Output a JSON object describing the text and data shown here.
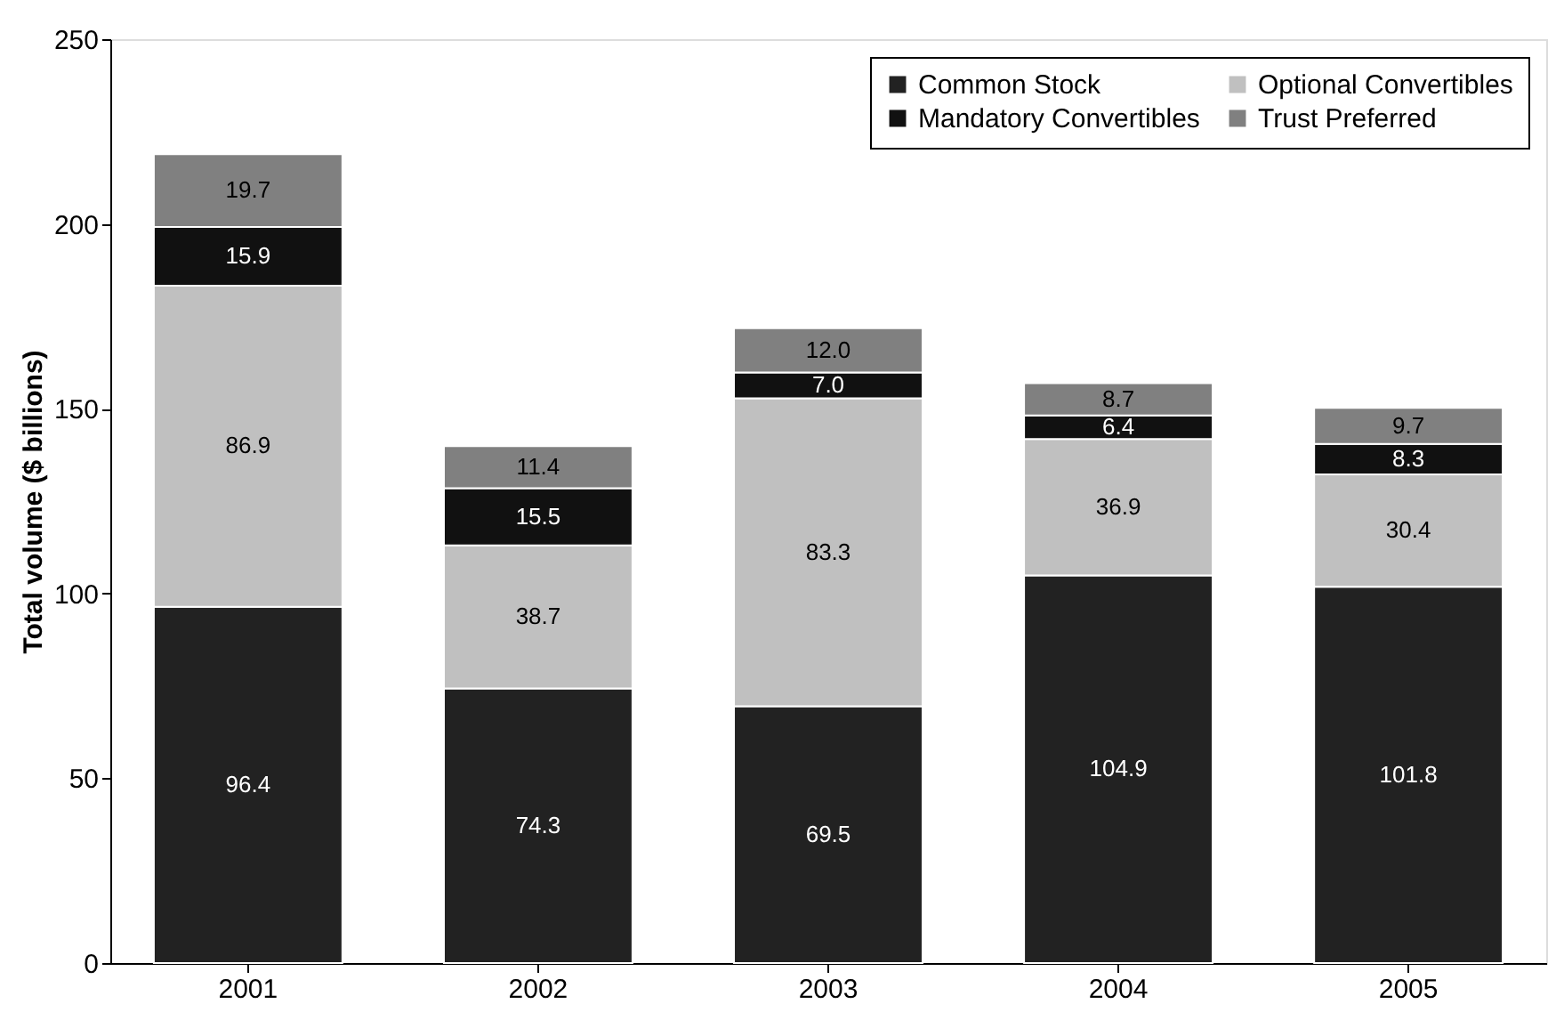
{
  "chart_data": {
    "type": "bar",
    "stacked": true,
    "ylabel": "Total volume ($ billions)",
    "categories": [
      "2001",
      "2002",
      "2003",
      "2004",
      "2005"
    ],
    "series": [
      {
        "name": "Common Stock",
        "color": "#222222",
        "values": [
          96.4,
          74.3,
          69.5,
          104.9,
          101.8
        ],
        "value_labels": [
          "96.4",
          "74.3",
          "69.5",
          "104.9",
          "101.8"
        ]
      },
      {
        "name": "Optional Convertibles",
        "color": "#c0c0c0",
        "values": [
          86.9,
          38.7,
          83.3,
          36.9,
          30.4
        ],
        "value_labels": [
          "86.9",
          "38.7",
          "83.3",
          "36.9",
          "30.4"
        ]
      },
      {
        "name": "Mandatory Convertibles",
        "color": "#111111",
        "values": [
          15.9,
          15.5,
          7.0,
          6.4,
          8.3
        ],
        "value_labels": [
          "15.9",
          "15.5",
          "7.0",
          "6.4",
          "8.3"
        ]
      },
      {
        "name": "Trust Preferred",
        "color": "#808080",
        "values": [
          19.7,
          11.4,
          12.0,
          8.7,
          9.7
        ],
        "value_labels": [
          "19.7",
          "11.4",
          "12.0",
          "8.7",
          "9.7"
        ]
      }
    ],
    "ylim": [
      0,
      250
    ],
    "yticks": [
      0,
      50,
      100,
      150,
      200,
      250
    ],
    "grid": false,
    "legend": "top right"
  }
}
